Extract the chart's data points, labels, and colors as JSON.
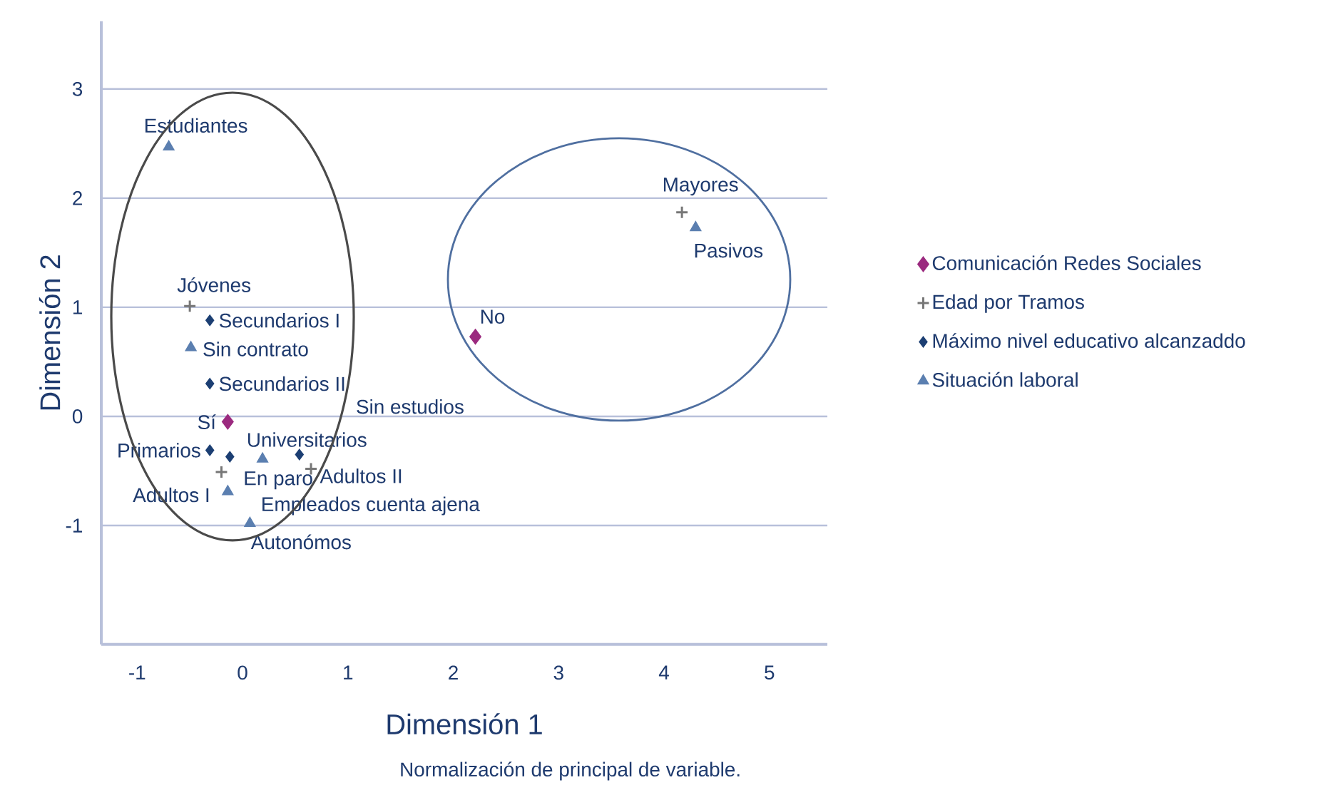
{
  "chart_data": {
    "type": "scatter",
    "xlabel": "Dimensión 1",
    "ylabel": "Dimensión 2",
    "xlim": [
      -1.34,
      5.55
    ],
    "ylim": [
      -2.09,
      3.62
    ],
    "xticks": [
      -1,
      0,
      1,
      2,
      3,
      4,
      5
    ],
    "yticks": [
      -1,
      0,
      1,
      2,
      3
    ],
    "grid": "y",
    "legend": "right",
    "series": [
      {
        "name": "Comunicación Redes Sociales",
        "color": "#9b2a7f",
        "marker": "diamond",
        "x": [
          -0.14,
          2.21
        ],
        "values": [
          -0.05,
          0.73
        ]
      },
      {
        "name": "Edad por Tramos",
        "color": "#777777",
        "marker": "cross",
        "x": [
          -0.5,
          4.17,
          -0.2,
          0.65
        ],
        "values": [
          1.01,
          1.87,
          -0.51,
          -0.48
        ]
      },
      {
        "name": "Máximo nivel educativo alcanzaddo",
        "color": "#1c3f73",
        "marker": "diamond",
        "x": [
          -0.31,
          -0.31,
          -0.31,
          -0.12,
          0.54
        ],
        "values": [
          0.88,
          0.3,
          -0.31,
          -0.37,
          -0.35
        ]
      },
      {
        "name": "Situación laboral",
        "color": "#5b7fb0",
        "marker": "triangle",
        "x": [
          -0.7,
          -0.49,
          0.19,
          -0.14,
          0.07,
          4.3
        ],
        "values": [
          2.47,
          0.63,
          -0.39,
          -0.69,
          -0.98,
          1.73
        ]
      }
    ],
    "annotations": [
      {
        "text": "Estudiantes",
        "x": -0.7,
        "y": 2.47
      },
      {
        "text": "Jóvenes",
        "x": -0.5,
        "y": 1.01
      },
      {
        "text": "Secundarios I",
        "x": -0.31,
        "y": 0.88
      },
      {
        "text": "Sin contrato",
        "x": -0.49,
        "y": 0.63
      },
      {
        "text": "Secundarios II",
        "x": -0.31,
        "y": 0.3
      },
      "Sin estudios",
      {
        "text": "Sí",
        "x": -0.14,
        "y": -0.05
      },
      {
        "text": "Universitarios",
        "x": -0.12,
        "y": -0.37
      },
      {
        "text": "Primarios",
        "x": -0.31,
        "y": -0.31
      },
      {
        "text": "En paro",
        "x": 0.19,
        "y": -0.39
      },
      {
        "text": "Adultos II",
        "x": 0.65,
        "y": -0.48
      },
      {
        "text": "Adultos I",
        "x": -0.2,
        "y": -0.51
      },
      {
        "text": "Empleados cuenta ajena",
        "x": -0.14,
        "y": -0.69
      },
      {
        "text": "Autonómos",
        "x": 0.07,
        "y": -0.98
      },
      {
        "text": "No",
        "x": 2.21,
        "y": 0.73
      },
      {
        "text": "Mayores",
        "x": 4.17,
        "y": 1.87
      },
      {
        "text": "Pasivos",
        "x": 4.3,
        "y": 1.73
      },
      "Normalización de principal de variable."
    ]
  }
}
